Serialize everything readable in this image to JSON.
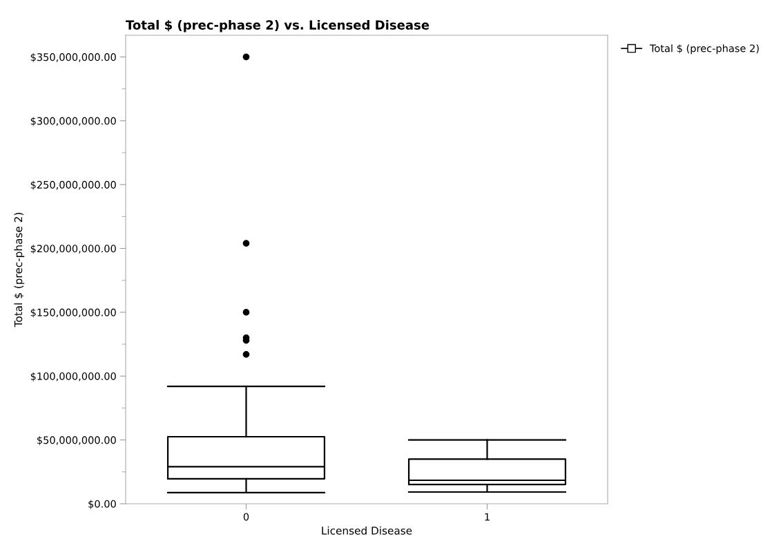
{
  "chart_data": {
    "type": "box",
    "title": "Total $ (prec-phase 2) vs. Licensed Disease",
    "xlabel": "Licensed Disease",
    "ylabel": "Total $ (prec-phase 2)",
    "categories": [
      "0",
      "1"
    ],
    "series": [
      {
        "name": "Total $ (prec-phase 2)",
        "color": "#000000",
        "boxes": [
          {
            "low": 8700000,
            "q1": 19500000,
            "median": 29000000,
            "q3": 52500000,
            "high": 92000000,
            "outliers": [
              350000000,
              204000000,
              150000000,
              130000000,
              128000000,
              117000000
            ]
          },
          {
            "low": 9200000,
            "q1": 15100000,
            "median": 18400000,
            "q3": 35000000,
            "high": 50000000
          }
        ]
      }
    ],
    "ylim": [
      0,
      367000000
    ],
    "yticks": [
      {
        "value": 0,
        "label": "$0.00"
      },
      {
        "value": 50000000,
        "label": "$50,000,000.00"
      },
      {
        "value": 100000000,
        "label": "$100,000,000.00"
      },
      {
        "value": 150000000,
        "label": "$150,000,000.00"
      },
      {
        "value": 200000000,
        "label": "$200,000,000.00"
      },
      {
        "value": 250000000,
        "label": "$250,000,000.00"
      },
      {
        "value": 300000000,
        "label": "$300,000,000.00"
      },
      {
        "value": 350000000,
        "label": "$350,000,000.00"
      }
    ],
    "grid": false,
    "legend": "top right"
  }
}
